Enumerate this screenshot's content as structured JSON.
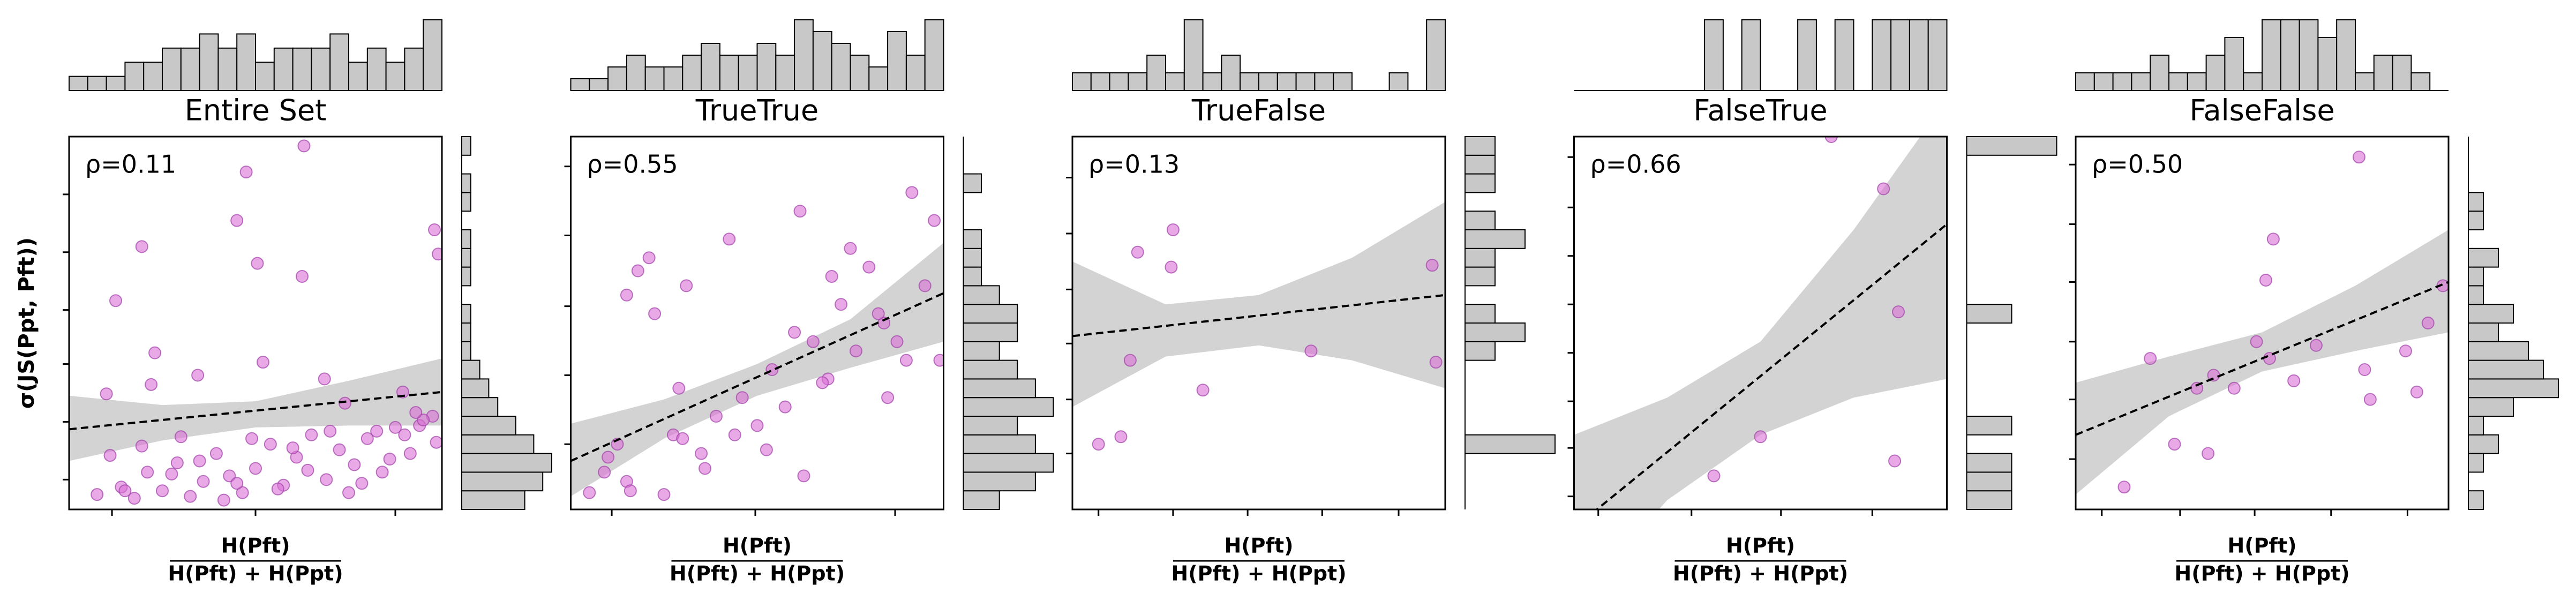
{
  "chart_data": [
    {
      "type": "scatter",
      "title": "Entire Set",
      "annotation": "ρ=0.11",
      "ylabel": "σ(JS(Ppt, Pft))",
      "xlabel_numerator": "H(Pft)",
      "xlabel_denominator": "H(Pft) + H(Ppt)",
      "point_color": "#da70d6",
      "xlim": [
        0,
        20
      ],
      "ylim": [
        0,
        20
      ],
      "xticks": [
        2.3,
        10.0,
        17.5
      ],
      "yticks": [
        16.9,
        13.8,
        10.7,
        7.8,
        4.7,
        1.6
      ],
      "x": [
        12.6,
        9.5,
        9.0,
        3.9,
        10.1,
        12.5,
        19.6,
        19.8,
        2.5,
        4.6,
        4.4,
        6.9,
        10.4,
        13.7,
        17.9,
        2.0,
        14.8,
        19.5,
        18.8,
        16.5,
        1.5,
        2.8,
        3.5,
        4.2,
        5.0,
        5.8,
        6.5,
        7.2,
        7.9,
        8.6,
        9.3,
        10.0,
        10.8,
        11.5,
        12.2,
        13.0,
        13.8,
        14.5,
        15.3,
        16.0,
        16.8,
        17.5,
        18.3,
        19.0,
        19.7,
        2.2,
        3.9,
        5.5,
        7.0,
        8.3,
        9.8,
        11.2,
        12.8,
        14.0,
        15.7,
        17.2,
        18.6,
        3.0,
        6.0,
        9.0,
        12.0,
        15.0,
        18.0
      ],
      "values": [
        19.5,
        18.1,
        15.5,
        14.1,
        13.2,
        12.5,
        15.0,
        13.7,
        11.2,
        8.4,
        6.7,
        7.2,
        7.9,
        7.0,
        6.3,
        6.2,
        5.7,
        5.0,
        4.5,
        4.2,
        0.8,
        1.2,
        0.6,
        2.0,
        1.0,
        2.5,
        0.7,
        1.5,
        3.0,
        1.8,
        0.9,
        2.2,
        3.5,
        1.3,
        2.8,
        4.0,
        1.6,
        3.2,
        2.4,
        3.8,
        2.0,
        4.4,
        3.0,
        4.8,
        3.6,
        2.9,
        3.4,
        1.9,
        2.6,
        0.5,
        3.8,
        1.1,
        2.1,
        4.2,
        1.4,
        2.7,
        5.2,
        1.0,
        3.9,
        1.4,
        3.3,
        0.9,
        4.0
      ],
      "fit": [
        4.3,
        6.3
      ],
      "band_x": [
        0,
        5,
        10,
        15,
        20
      ],
      "band_lower": [
        2.6,
        3.7,
        4.4,
        4.5,
        4.5
      ],
      "band_upper": [
        6.1,
        5.6,
        5.8,
        6.9,
        8.1
      ],
      "hist_bins": [
        0,
        1,
        2,
        3,
        4,
        5,
        6,
        7,
        8,
        9,
        10,
        11,
        12,
        13,
        14,
        15,
        16,
        17,
        18,
        19,
        20
      ],
      "x_hist": [
        1,
        1,
        1,
        2,
        2,
        3,
        3,
        4,
        3,
        4,
        2,
        3,
        3,
        3,
        4,
        2,
        3,
        2,
        3,
        5
      ],
      "y_hist": [
        7,
        9,
        10,
        8,
        6,
        4,
        3,
        2,
        1,
        1,
        1,
        0,
        1,
        1,
        1,
        0,
        1,
        1,
        0,
        1
      ]
    },
    {
      "type": "scatter",
      "title": "TrueTrue",
      "annotation": "ρ=0.55",
      "xlabel_numerator": "H(Pft)",
      "xlabel_denominator": "H(Pft) + H(Ppt)",
      "point_color": "#da70d6",
      "xlim": [
        0,
        20
      ],
      "ylim": [
        0,
        20
      ],
      "xticks": [
        2.2,
        9.9,
        17.4
      ],
      "yticks": [
        18.4,
        14.7,
        10.9,
        7.2,
        3.5
      ],
      "x": [
        1.0,
        1.8,
        2.5,
        3.0,
        3.6,
        4.2,
        5.0,
        5.5,
        6.2,
        7.0,
        7.8,
        8.5,
        9.2,
        10.0,
        10.8,
        11.5,
        12.3,
        13.0,
        13.8,
        14.5,
        15.3,
        16.0,
        16.8,
        17.5,
        18.3,
        19.0,
        19.8,
        2.0,
        3.2,
        4.5,
        5.8,
        7.2,
        8.8,
        10.5,
        12.0,
        13.5,
        15.0,
        16.5,
        18.0,
        19.5,
        3.0,
        6.0,
        12.5,
        14.0,
        17.0
      ],
      "values": [
        0.9,
        2.0,
        3.5,
        1.5,
        12.8,
        13.5,
        0.8,
        4.0,
        12.0,
        3.0,
        5.0,
        14.5,
        6.0,
        4.5,
        7.5,
        5.5,
        16.0,
        9.0,
        7.0,
        11.0,
        8.5,
        13.0,
        10.0,
        9.0,
        17.0,
        12.0,
        8.0,
        2.8,
        1.0,
        10.5,
        6.5,
        2.2,
        4.0,
        3.2,
        9.5,
        6.8,
        14.0,
        10.5,
        8.0,
        15.5,
        11.5,
        3.8,
        1.8,
        12.5,
        6.0
      ],
      "fit": [
        2.6,
        11.6
      ],
      "band_x": [
        0,
        5,
        10,
        15,
        20
      ],
      "band_lower": [
        0.7,
        3.8,
        6.1,
        7.6,
        9.0
      ],
      "band_upper": [
        4.6,
        5.9,
        7.8,
        10.2,
        14.3
      ],
      "hist_bins": [
        0,
        1,
        2,
        3,
        4,
        5,
        6,
        7,
        8,
        9,
        10,
        11,
        12,
        13,
        14,
        15,
        16,
        17,
        18,
        19,
        20
      ],
      "x_hist": [
        1,
        1,
        2,
        3,
        2,
        2,
        3,
        4,
        3,
        3,
        4,
        3,
        6,
        5,
        4,
        3,
        2,
        5,
        3,
        6
      ],
      "y_hist": [
        2,
        4,
        5,
        4,
        3,
        5,
        4,
        3,
        2,
        3,
        3,
        2,
        1,
        1,
        1,
        0,
        0,
        1,
        0,
        0
      ]
    },
    {
      "type": "scatter",
      "title": "TrueFalse",
      "annotation": "ρ=0.13",
      "xlabel_numerator": "H(Pft)",
      "xlabel_denominator": "H(Pft) + H(Ppt)",
      "point_color": "#da70d6",
      "xlim": [
        0,
        20
      ],
      "ylim": [
        0,
        20
      ],
      "xticks": [
        1.4,
        5.4,
        9.4,
        13.4,
        17.5
      ],
      "yticks": [
        17.8,
        14.8,
        11.8,
        8.9,
        5.9,
        3.0
      ],
      "x": [
        3.5,
        5.4,
        5.3,
        3.1,
        7.0,
        1.4,
        2.6,
        12.8,
        19.3,
        19.5
      ],
      "values": [
        13.8,
        15.0,
        13.0,
        8.0,
        6.4,
        3.5,
        3.9,
        8.5,
        13.1,
        7.9
      ],
      "fit": [
        9.3,
        11.5
      ],
      "band_x": [
        0,
        5,
        10,
        15,
        20
      ],
      "band_lower": [
        5.5,
        8.2,
        8.8,
        8.0,
        6.5
      ],
      "band_upper": [
        13.3,
        11.0,
        11.5,
        13.5,
        16.5
      ],
      "hist_bins": [
        0,
        1,
        2,
        3,
        4,
        5,
        6,
        7,
        8,
        9,
        10,
        11,
        12,
        13,
        14,
        15,
        16,
        17,
        18,
        19,
        20
      ],
      "x_hist": [
        1,
        1,
        1,
        1,
        2,
        1,
        4,
        1,
        2,
        1,
        1,
        1,
        1,
        1,
        1,
        0,
        0,
        1,
        0,
        4
      ],
      "y_hist": [
        0,
        0,
        0,
        3,
        0,
        0,
        0,
        0,
        1,
        2,
        1,
        0,
        1,
        1,
        2,
        1,
        0,
        1,
        1,
        1
      ]
    },
    {
      "type": "scatter",
      "title": "FalseTrue",
      "annotation": "ρ=0.66",
      "xlabel_numerator": "H(Pft)",
      "xlabel_denominator": "H(Pft) + H(Ppt)",
      "point_color": "#da70d6",
      "xlim": [
        0,
        20
      ],
      "ylim": [
        0,
        20
      ],
      "xticks": [
        1.3,
        6.3,
        11.1,
        16.0
      ],
      "yticks": [
        18.9,
        16.2,
        13.6,
        11.0,
        8.4,
        5.8,
        3.3,
        0.7
      ],
      "x": [
        13.8,
        16.6,
        17.4,
        10.0,
        7.5,
        17.2
      ],
      "values": [
        20.0,
        17.2,
        10.6,
        3.9,
        1.8,
        2.6
      ],
      "fit": [
        -1.0,
        15.3
      ],
      "band_x": [
        0,
        5,
        10,
        15,
        20
      ],
      "band_lower": [
        -5,
        0.5,
        4,
        6,
        7
      ],
      "band_upper": [
        4,
        6,
        9,
        15,
        22
      ],
      "hist_bins": [
        0,
        1,
        2,
        3,
        4,
        5,
        6,
        7,
        8,
        9,
        10,
        11,
        12,
        13,
        14,
        15,
        16,
        17,
        18,
        19,
        20
      ],
      "x_hist": [
        0,
        0,
        0,
        0,
        0,
        0,
        0,
        1,
        0,
        1,
        0,
        0,
        1,
        0,
        1,
        0,
        1,
        1,
        1,
        1
      ],
      "y_hist": [
        1,
        1,
        1,
        0,
        1,
        0,
        0,
        0,
        0,
        0,
        1,
        0,
        0,
        0,
        0,
        0,
        0,
        0,
        0,
        2
      ]
    },
    {
      "type": "scatter",
      "title": "FalseFalse",
      "annotation": "ρ=0.50",
      "xlabel_numerator": "H(Pft)",
      "xlabel_denominator": "H(Pft) + H(Ppt)",
      "point_color": "#da70d6",
      "xlim": [
        0,
        20
      ],
      "ylim": [
        0,
        20
      ],
      "xticks": [
        1.4,
        5.6,
        9.6,
        13.7,
        17.8
      ],
      "yticks": [
        18.5,
        15.3,
        12.2,
        9.0,
        5.9,
        2.7
      ],
      "x": [
        15.2,
        10.6,
        10.2,
        4.0,
        10.4,
        7.4,
        8.5,
        6.5,
        2.6,
        5.3,
        7.1,
        15.8,
        15.5,
        17.7,
        18.3,
        18.9,
        19.7,
        12.9,
        11.7,
        9.7
      ],
      "values": [
        18.9,
        14.5,
        12.3,
        8.1,
        8.1,
        7.2,
        6.5,
        6.5,
        1.2,
        3.5,
        3.0,
        5.9,
        7.5,
        8.5,
        6.3,
        10.0,
        12.0,
        8.8,
        6.9,
        9.0
      ],
      "fit": [
        4.0,
        12.2
      ],
      "band_x": [
        0,
        5,
        10,
        15,
        20
      ],
      "band_lower": [
        0.8,
        5.0,
        7.4,
        8.5,
        9.5
      ],
      "band_upper": [
        6.8,
        8.2,
        9.5,
        12.0,
        15.0
      ],
      "hist_bins": [
        0,
        1,
        2,
        3,
        4,
        5,
        6,
        7,
        8,
        9,
        10,
        11,
        12,
        13,
        14,
        15,
        16,
        17,
        18,
        19,
        20
      ],
      "x_hist": [
        1,
        1,
        1,
        1,
        2,
        1,
        1,
        2,
        3,
        1,
        4,
        4,
        4,
        3,
        4,
        1,
        2,
        2,
        1,
        0
      ],
      "y_hist": [
        1,
        0,
        1,
        2,
        1,
        3,
        6,
        5,
        4,
        2,
        3,
        1,
        1,
        2,
        0,
        1,
        1,
        0,
        0,
        0
      ]
    }
  ]
}
